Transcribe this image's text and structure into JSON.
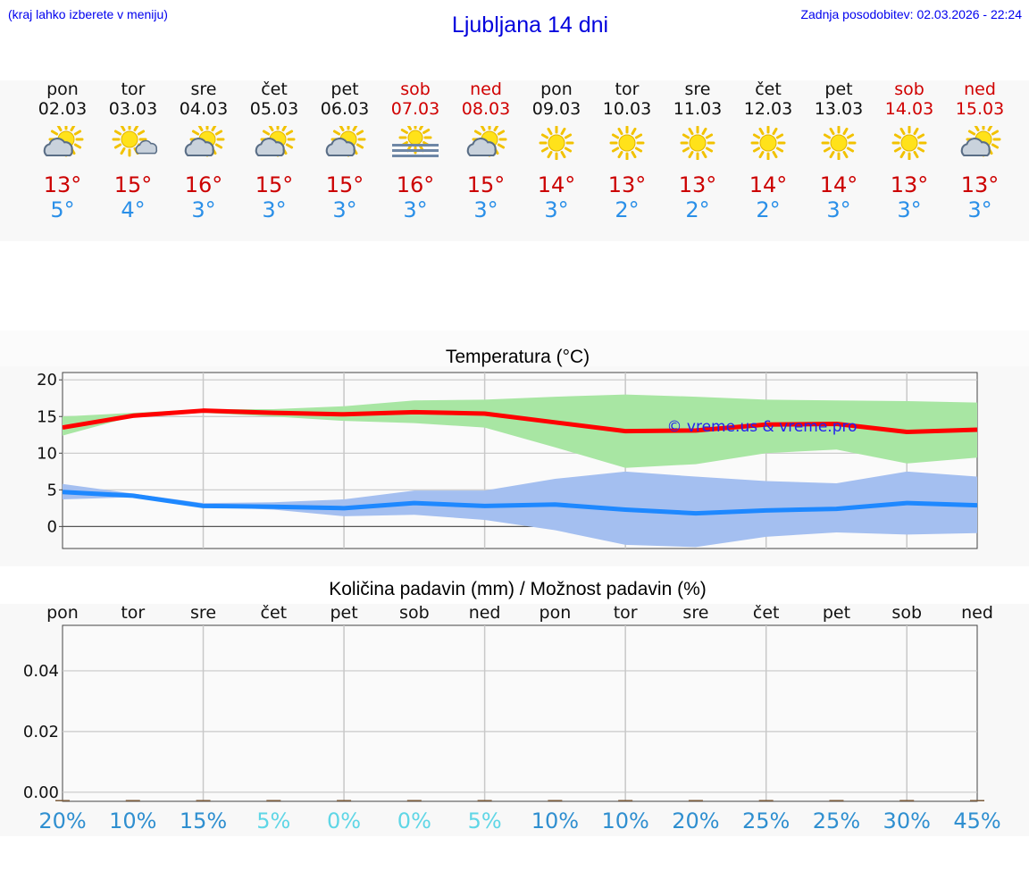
{
  "header": {
    "note": "(kraj lahko izberete v meniju)",
    "title": "Ljubljana 14 dni",
    "updated": "Zadnja posodobitev: 02.03.2026 - 22:24"
  },
  "days": [
    {
      "name": "pon",
      "date": "02.03",
      "weekend": false,
      "icon": "partly-cloudy-icon",
      "tmax": "13°",
      "tmin": "5°"
    },
    {
      "name": "tor",
      "date": "03.03",
      "weekend": false,
      "icon": "sun-small-cloud-icon",
      "tmax": "15°",
      "tmin": "4°"
    },
    {
      "name": "sre",
      "date": "04.03",
      "weekend": false,
      "icon": "partly-cloudy-icon",
      "tmax": "16°",
      "tmin": "3°"
    },
    {
      "name": "čet",
      "date": "05.03",
      "weekend": false,
      "icon": "partly-cloudy-icon",
      "tmax": "15°",
      "tmin": "3°"
    },
    {
      "name": "pet",
      "date": "06.03",
      "weekend": false,
      "icon": "partly-cloudy-icon",
      "tmax": "15°",
      "tmin": "3°"
    },
    {
      "name": "sob",
      "date": "07.03",
      "weekend": true,
      "icon": "fog-sun-icon",
      "tmax": "16°",
      "tmin": "3°"
    },
    {
      "name": "ned",
      "date": "08.03",
      "weekend": true,
      "icon": "partly-cloudy-icon",
      "tmax": "15°",
      "tmin": "3°"
    },
    {
      "name": "pon",
      "date": "09.03",
      "weekend": false,
      "icon": "sun-icon",
      "tmax": "14°",
      "tmin": "3°"
    },
    {
      "name": "tor",
      "date": "10.03",
      "weekend": false,
      "icon": "sun-icon",
      "tmax": "13°",
      "tmin": "2°"
    },
    {
      "name": "sre",
      "date": "11.03",
      "weekend": false,
      "icon": "sun-icon",
      "tmax": "13°",
      "tmin": "2°"
    },
    {
      "name": "čet",
      "date": "12.03",
      "weekend": false,
      "icon": "sun-icon",
      "tmax": "14°",
      "tmin": "2°"
    },
    {
      "name": "pet",
      "date": "13.03",
      "weekend": false,
      "icon": "sun-icon",
      "tmax": "14°",
      "tmin": "3°"
    },
    {
      "name": "sob",
      "date": "14.03",
      "weekend": true,
      "icon": "sun-icon",
      "tmax": "13°",
      "tmin": "3°"
    },
    {
      "name": "ned",
      "date": "15.03",
      "weekend": true,
      "icon": "partly-cloudy-icon",
      "tmax": "13°",
      "tmin": "3°"
    }
  ],
  "colors": {
    "max_line": "#ff0000",
    "max_band": "#a8e6a3",
    "min_line": "#1e88ff",
    "min_band": "#a4bff0",
    "weekend_text": "#d00000",
    "tmax_text": "#cc0000",
    "tmin_text": "#2a8fe8",
    "pct_dark": "#2f8fd0",
    "pct_light": "#5fd6e6"
  },
  "chart_data": [
    {
      "type": "line",
      "title": "Temperatura (°C)",
      "watermark": "© vreme.us & vreme.pro",
      "x": [
        "02.03",
        "03.03",
        "04.03",
        "05.03",
        "06.03",
        "07.03",
        "08.03",
        "09.03",
        "10.03",
        "11.03",
        "12.03",
        "13.03",
        "14.03",
        "15.03"
      ],
      "ylim": [
        -3,
        21
      ],
      "yticks": [
        0,
        5,
        10,
        15,
        20
      ],
      "grid": true,
      "series": [
        {
          "role": "max",
          "values": [
            13.5,
            15.1,
            15.8,
            15.5,
            15.3,
            15.6,
            15.4,
            14.2,
            13.0,
            13.1,
            13.9,
            14.0,
            12.9,
            13.2
          ],
          "band_low": [
            12.4,
            15.0,
            15.5,
            15.0,
            14.4,
            14.1,
            13.5,
            10.8,
            8.0,
            8.5,
            10.0,
            10.5,
            8.6,
            9.4
          ],
          "band_high": [
            15.0,
            15.5,
            16.0,
            16.0,
            16.4,
            17.2,
            17.3,
            17.7,
            18.0,
            17.7,
            17.3,
            17.2,
            17.1,
            16.9
          ]
        },
        {
          "role": "min",
          "values": [
            4.7,
            4.2,
            2.8,
            2.7,
            2.5,
            3.2,
            2.8,
            3.0,
            2.3,
            1.8,
            2.2,
            2.4,
            3.2,
            2.9
          ],
          "band_low": [
            3.7,
            4.0,
            2.7,
            2.3,
            1.4,
            1.6,
            0.9,
            -0.5,
            -2.5,
            -2.8,
            -1.4,
            -0.8,
            -1.1,
            -0.9
          ],
          "band_high": [
            5.8,
            4.5,
            3.2,
            3.3,
            3.7,
            4.9,
            4.9,
            6.5,
            7.5,
            6.8,
            6.2,
            5.9,
            7.5,
            6.8
          ]
        }
      ]
    },
    {
      "type": "bar",
      "title": "Količina padavin (mm) / Možnost padavin (%)",
      "categories": [
        "pon",
        "tor",
        "sre",
        "čet",
        "pet",
        "sob",
        "ned",
        "pon",
        "tor",
        "sre",
        "čet",
        "pet",
        "sob",
        "ned"
      ],
      "values": [
        0,
        0,
        0,
        0,
        0,
        0,
        0,
        0,
        0,
        0,
        0,
        0,
        0,
        0
      ],
      "ylim": [
        -0.003,
        0.055
      ],
      "yticks": [
        0.0,
        0.02,
        0.04
      ],
      "ytick_labels": [
        "0.00",
        "0.02",
        "0.04"
      ],
      "chance": [
        "20%",
        "10%",
        "15%",
        "5%",
        "0%",
        "0%",
        "5%",
        "10%",
        "10%",
        "20%",
        "25%",
        "25%",
        "30%",
        "45%"
      ],
      "chance_values": [
        20,
        10,
        15,
        5,
        0,
        0,
        5,
        10,
        10,
        20,
        25,
        25,
        30,
        45
      ]
    }
  ]
}
